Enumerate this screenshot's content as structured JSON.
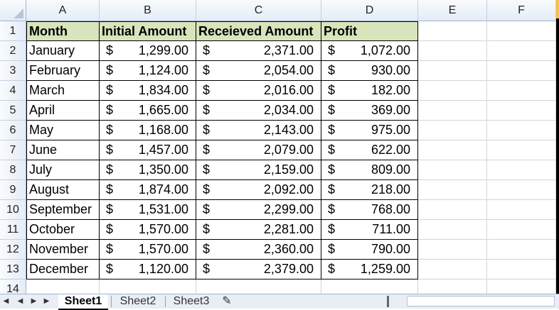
{
  "columns": [
    "A",
    "B",
    "C",
    "D",
    "E",
    "F"
  ],
  "rows": [
    "1",
    "2",
    "3",
    "4",
    "5",
    "6",
    "7",
    "8",
    "9",
    "10",
    "11",
    "12",
    "13",
    "14"
  ],
  "header": {
    "month": "Month",
    "initial": "Initial Amount",
    "received": "Receieved Amount",
    "profit": "Profit"
  },
  "currency": "$",
  "data": [
    {
      "month": "January",
      "initial": "1,299.00",
      "received": "2,371.00",
      "profit": "1,072.00"
    },
    {
      "month": "February",
      "initial": "1,124.00",
      "received": "2,054.00",
      "profit": "930.00"
    },
    {
      "month": "March",
      "initial": "1,834.00",
      "received": "2,016.00",
      "profit": "182.00"
    },
    {
      "month": "April",
      "initial": "1,665.00",
      "received": "2,034.00",
      "profit": "369.00"
    },
    {
      "month": "May",
      "initial": "1,168.00",
      "received": "2,143.00",
      "profit": "975.00"
    },
    {
      "month": "June",
      "initial": "1,457.00",
      "received": "2,079.00",
      "profit": "622.00"
    },
    {
      "month": "July",
      "initial": "1,350.00",
      "received": "2,159.00",
      "profit": "809.00"
    },
    {
      "month": "August",
      "initial": "1,874.00",
      "received": "2,092.00",
      "profit": "218.00"
    },
    {
      "month": "September",
      "initial": "1,531.00",
      "received": "2,299.00",
      "profit": "768.00"
    },
    {
      "month": "October",
      "initial": "1,570.00",
      "received": "2,281.00",
      "profit": "711.00"
    },
    {
      "month": "November",
      "initial": "1,570.00",
      "received": "2,360.00",
      "profit": "790.00"
    },
    {
      "month": "December",
      "initial": "1,120.00",
      "received": "2,379.00",
      "profit": "1,259.00"
    }
  ],
  "sheets": [
    "Sheet1",
    "Sheet2",
    "Sheet3"
  ],
  "active_sheet": "Sheet1",
  "colors": {
    "header_fill": "#d8e4bc",
    "grid": "#d4d4d4",
    "border": "#000000"
  }
}
